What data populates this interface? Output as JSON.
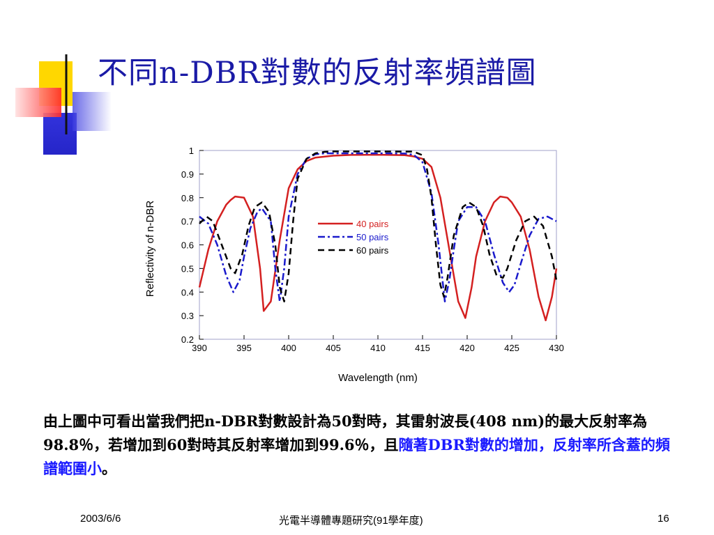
{
  "slide": {
    "title": "不同n-DBR對數的反射率頻譜圖",
    "paragraph_main": "由上圖中可看出當我們把n-DBR對數設計為50對時，其雷射波長(408 nm)的最大反射率為98.8％，若增加到60對時其反射率增加到99.6％，且",
    "paragraph_highlight": "隨著DBR對數的增加，反射率所含蓋的頻譜範圍小",
    "paragraph_end": "。",
    "colors": {
      "title": "#1a1aa6",
      "highlight": "#1a1aff",
      "accent_red": "#e02020",
      "accent_yellow": "#ffd700",
      "accent_blue": "#2a2ad8"
    }
  },
  "footer": {
    "date": "2003/6/6",
    "course": "光電半導體專題研究(91學年度)",
    "page": "16"
  },
  "chart_data": {
    "type": "line",
    "xlabel": "Wavelength (nm)",
    "ylabel": "Reflectivity of n-DBR",
    "xlim": [
      390,
      430
    ],
    "ylim": [
      0.2,
      1.0
    ],
    "xticks": [
      390,
      395,
      400,
      405,
      410,
      415,
      420,
      425,
      430
    ],
    "yticks": [
      0.2,
      0.3,
      0.4,
      0.5,
      0.6,
      0.7,
      0.8,
      0.9,
      1
    ],
    "grid": false,
    "legend_position": "center",
    "series": [
      {
        "name": "40 pairs",
        "color": "#d42020",
        "style": "solid",
        "x": [
          390,
          390.5,
          391,
          392,
          393,
          393.5,
          394,
          395,
          396,
          396.8,
          397.2,
          398,
          399,
          400,
          401,
          402,
          403,
          405,
          407,
          410,
          413,
          414,
          415,
          416,
          417,
          418,
          419,
          419.8,
          420.5,
          421,
          422,
          423,
          423.7,
          424.5,
          425,
          426,
          427,
          428,
          428.8,
          429.5,
          430
        ],
        "y": [
          0.42,
          0.5,
          0.58,
          0.7,
          0.77,
          0.79,
          0.805,
          0.8,
          0.72,
          0.5,
          0.32,
          0.36,
          0.62,
          0.84,
          0.92,
          0.955,
          0.97,
          0.978,
          0.981,
          0.982,
          0.98,
          0.975,
          0.965,
          0.93,
          0.8,
          0.58,
          0.36,
          0.29,
          0.42,
          0.55,
          0.7,
          0.78,
          0.805,
          0.8,
          0.78,
          0.72,
          0.58,
          0.38,
          0.28,
          0.38,
          0.5
        ]
      },
      {
        "name": "50 pairs",
        "color": "#1a1acc",
        "style": "dashdot",
        "x": [
          390,
          391,
          392,
          393,
          393.8,
          394.5,
          395,
          395.7,
          396.5,
          397,
          398,
          398.5,
          399,
          399.5,
          400,
          401,
          402,
          403,
          404,
          407,
          410,
          413,
          414,
          415,
          416,
          416.8,
          417.5,
          418,
          418.5,
          419,
          420,
          421,
          422,
          423,
          424,
          424.7,
          425.3,
          426,
          427,
          428,
          429,
          430
        ],
        "y": [
          0.72,
          0.69,
          0.6,
          0.47,
          0.4,
          0.45,
          0.55,
          0.67,
          0.74,
          0.755,
          0.7,
          0.5,
          0.36,
          0.5,
          0.72,
          0.9,
          0.965,
          0.984,
          0.988,
          0.988,
          0.988,
          0.987,
          0.982,
          0.95,
          0.82,
          0.6,
          0.36,
          0.45,
          0.58,
          0.7,
          0.76,
          0.76,
          0.7,
          0.56,
          0.44,
          0.4,
          0.43,
          0.52,
          0.64,
          0.71,
          0.72,
          0.7
        ]
      },
      {
        "name": "60 pairs",
        "color": "#000000",
        "style": "dashed",
        "x": [
          390,
          390.8,
          391.5,
          392.5,
          393.5,
          394,
          394.8,
          395.5,
          396.2,
          397,
          397.8,
          398.5,
          399,
          399.5,
          400,
          400.5,
          401,
          402,
          403,
          404,
          405,
          410,
          414,
          415,
          415.5,
          416,
          416.5,
          417,
          417.4,
          417.8,
          418.5,
          419.5,
          420.2,
          421,
          421.8,
          422.5,
          423.3,
          424,
          424.5,
          425.5,
          426.5,
          427.5,
          428.5,
          429.5,
          430
        ],
        "y": [
          0.69,
          0.72,
          0.7,
          0.6,
          0.5,
          0.48,
          0.56,
          0.68,
          0.76,
          0.78,
          0.74,
          0.6,
          0.42,
          0.36,
          0.48,
          0.7,
          0.88,
          0.965,
          0.988,
          0.994,
          0.996,
          0.996,
          0.995,
          0.98,
          0.92,
          0.8,
          0.6,
          0.43,
          0.38,
          0.46,
          0.64,
          0.76,
          0.78,
          0.76,
          0.68,
          0.56,
          0.47,
          0.46,
          0.5,
          0.62,
          0.7,
          0.72,
          0.68,
          0.55,
          0.45
        ]
      }
    ]
  }
}
